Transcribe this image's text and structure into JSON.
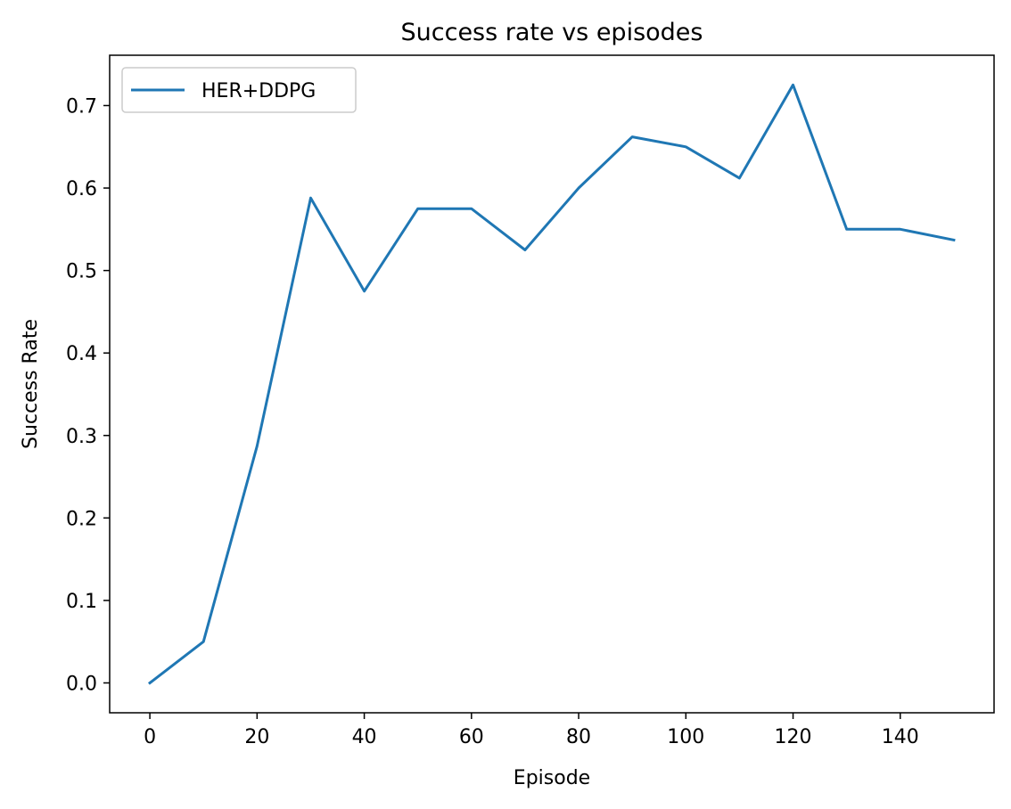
{
  "chart_data": {
    "type": "line",
    "title": "Success rate vs episodes",
    "xlabel": "Episode",
    "ylabel": "Success Rate",
    "xlim": [
      -7.5,
      157.5
    ],
    "ylim": [
      -0.0362,
      0.761
    ],
    "xticks": [
      0,
      20,
      40,
      60,
      80,
      100,
      120,
      140
    ],
    "yticks": [
      0.0,
      0.1,
      0.2,
      0.3,
      0.4,
      0.5,
      0.6,
      0.7
    ],
    "xtick_labels": [
      "0",
      "20",
      "40",
      "60",
      "80",
      "100",
      "120",
      "140"
    ],
    "ytick_labels": [
      "0.0",
      "0.1",
      "0.2",
      "0.3",
      "0.4",
      "0.5",
      "0.6",
      "0.7"
    ],
    "grid": false,
    "legend_position": "top-left",
    "series": [
      {
        "name": "HER+DDPG",
        "color": "#1f77b4",
        "x": [
          0,
          10,
          20,
          30,
          40,
          50,
          60,
          70,
          80,
          90,
          100,
          110,
          120,
          130,
          140,
          150
        ],
        "y": [
          0.0,
          0.05,
          0.287,
          0.588,
          0.475,
          0.575,
          0.575,
          0.525,
          0.6,
          0.662,
          0.65,
          0.612,
          0.725,
          0.55,
          0.55,
          0.537
        ]
      }
    ]
  }
}
